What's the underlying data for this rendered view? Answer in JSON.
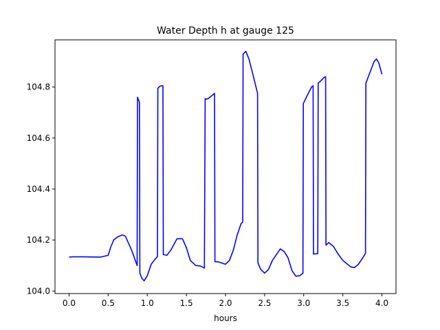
{
  "chart_data": {
    "type": "line",
    "title": "Water Depth h at gauge 125",
    "xlabel": "hours",
    "ylabel": "",
    "xlim": [
      -0.18,
      4.18
    ],
    "ylim": [
      103.99,
      104.985
    ],
    "xticks": [
      0.0,
      0.5,
      1.0,
      1.5,
      2.0,
      2.5,
      3.0,
      3.5,
      4.0
    ],
    "xtick_labels": [
      "0.0",
      "0.5",
      "1.0",
      "1.5",
      "2.0",
      "2.5",
      "3.0",
      "3.5",
      "4.0"
    ],
    "yticks": [
      104.0,
      104.2,
      104.4,
      104.6,
      104.8
    ],
    "ytick_labels": [
      "104.0",
      "104.2",
      "104.4",
      "104.6",
      "104.8"
    ],
    "grid": false,
    "legend": "none",
    "series": [
      {
        "color": "#0000ff",
        "x": [
          0.0,
          0.05,
          0.2,
          0.4,
          0.5,
          0.53,
          0.57,
          0.62,
          0.68,
          0.72,
          0.8,
          0.87,
          0.875,
          0.9,
          0.905,
          0.93,
          0.96,
          1.0,
          1.05,
          1.1,
          1.13,
          1.135,
          1.16,
          1.18,
          1.2,
          1.205,
          1.25,
          1.3,
          1.38,
          1.45,
          1.5,
          1.55,
          1.62,
          1.68,
          1.73,
          1.74,
          1.745,
          1.78,
          1.82,
          1.86,
          1.865,
          1.9,
          1.95,
          2.0,
          2.05,
          2.1,
          2.15,
          2.2,
          2.22,
          2.225,
          2.26,
          2.3,
          2.35,
          2.41,
          2.415,
          2.45,
          2.5,
          2.55,
          2.6,
          2.7,
          2.75,
          2.8,
          2.85,
          2.9,
          2.95,
          2.99,
          2.995,
          3.05,
          3.1,
          3.12,
          3.125,
          3.15,
          3.18,
          3.185,
          3.22,
          3.26,
          3.28,
          3.285,
          3.32,
          3.38,
          3.44,
          3.5,
          3.6,
          3.65,
          3.7,
          3.75,
          3.79,
          3.795,
          3.85,
          3.9,
          3.93,
          3.96,
          4.0
        ],
        "y": [
          104.133,
          104.134,
          104.134,
          104.133,
          104.14,
          104.17,
          104.2,
          104.212,
          104.22,
          104.215,
          104.16,
          104.1,
          104.76,
          104.74,
          104.07,
          104.05,
          104.04,
          104.06,
          104.105,
          104.125,
          104.135,
          104.795,
          104.803,
          104.805,
          104.805,
          104.143,
          104.14,
          104.16,
          104.205,
          104.205,
          104.17,
          104.12,
          104.1,
          104.098,
          104.09,
          104.755,
          104.752,
          104.755,
          104.765,
          104.775,
          104.115,
          104.115,
          104.11,
          104.105,
          104.12,
          104.16,
          104.22,
          104.265,
          104.27,
          104.93,
          104.94,
          104.91,
          104.85,
          104.775,
          104.11,
          104.085,
          104.07,
          104.085,
          104.12,
          104.165,
          104.155,
          104.13,
          104.08,
          104.058,
          104.06,
          104.07,
          104.735,
          104.77,
          104.8,
          104.805,
          104.145,
          104.146,
          104.147,
          104.815,
          104.825,
          104.838,
          104.84,
          104.18,
          104.19,
          104.175,
          104.145,
          104.12,
          104.095,
          104.092,
          104.105,
          104.128,
          104.148,
          104.815,
          104.86,
          104.9,
          104.91,
          104.895,
          104.85
        ]
      }
    ]
  }
}
